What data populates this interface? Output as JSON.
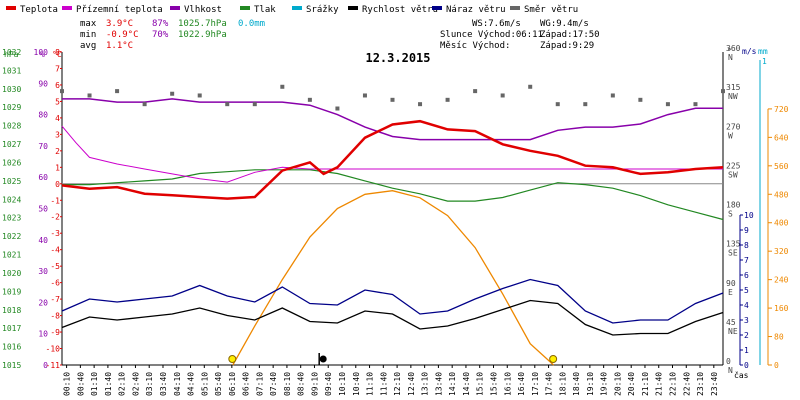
{
  "title": "12.3.2015",
  "legend": [
    {
      "label": "Teplota",
      "color": "#e00000"
    },
    {
      "label": "Přízemní teplota",
      "color": "#cc00cc"
    },
    {
      "label": "Vlhkost",
      "color": "#8800aa"
    },
    {
      "label": "Tlak",
      "color": "#228822"
    },
    {
      "label": "Srážky",
      "color": "#00aacc"
    },
    {
      "label": "Rychlost větru",
      "color": "#000000"
    },
    {
      "label": "Náraz větru",
      "color": "#000088"
    },
    {
      "label": "Směr větru",
      "color": "#666666"
    }
  ],
  "stats": {
    "rows": [
      {
        "label": "max",
        "temp": "3.9°C",
        "hum": "87%",
        "press": "1025.7hPa",
        "rain": "0.0mm"
      },
      {
        "label": "min",
        "temp": "-0.9°C",
        "hum": "70%",
        "press": "1022.9hPa",
        "rain": ""
      },
      {
        "label": "avg",
        "temp": "1.1°C",
        "hum": "",
        "press": "",
        "rain": ""
      }
    ],
    "ws": "WS:7.6m/s",
    "wg": "WG:9.4m/s",
    "slunce": "Slunce Východ:06:11",
    "slunce_zapad": "Západ:17:50",
    "mesic": "Měsíc  Východ:",
    "mesic_zapad": "Západ:9:29"
  },
  "axes": {
    "hpa_unit": "hPa",
    "hpa_ticks": [
      "1032",
      "1031",
      "1030",
      "1029",
      "1028",
      "1027",
      "1026",
      "1025",
      "1024",
      "1023",
      "1022",
      "1021",
      "1020",
      "1019",
      "1018",
      "1017",
      "1016",
      "1015"
    ],
    "pct_unit": "%",
    "pct_ticks": [
      "100",
      "90",
      "80",
      "70",
      "60",
      "50",
      "40",
      "30",
      "20",
      "10",
      "0"
    ],
    "c_unit": "°C",
    "c_ticks": [
      "8",
      "7",
      "6",
      "5",
      "4",
      "3",
      "2",
      "1",
      "0",
      "-1",
      "-2",
      "-3",
      "-4",
      "-5",
      "-6",
      "-7",
      "-8",
      "-9",
      "-10",
      "-11"
    ],
    "deg_unit": "°",
    "dir_ticks": [
      {
        "deg": "360",
        "dir": "N"
      },
      {
        "deg": "315",
        "dir": "NW"
      },
      {
        "deg": "270",
        "dir": "W"
      },
      {
        "deg": "225",
        "dir": "SW"
      },
      {
        "deg": "180",
        "dir": "S"
      },
      {
        "deg": "135",
        "dir": "SE"
      },
      {
        "deg": "90",
        "dir": "E"
      },
      {
        "deg": "45",
        "dir": "NE"
      },
      {
        "deg": "0",
        "dir": "N"
      }
    ],
    "ms_unit": "m/s",
    "ms_ticks": [
      "10",
      "9",
      "8",
      "7",
      "6",
      "5",
      "4",
      "3",
      "2",
      "1",
      "0"
    ],
    "mm_unit": "mm",
    "mm_top": "1",
    "wm_ticks": [
      "720",
      "640",
      "560",
      "480",
      "400",
      "320",
      "240",
      "160",
      "80",
      "0"
    ],
    "time_unit": "čas",
    "time_ticks": [
      "00:10",
      "00:40",
      "01:10",
      "01:40",
      "02:10",
      "02:40",
      "03:10",
      "03:40",
      "04:10",
      "04:40",
      "05:10",
      "05:40",
      "06:10",
      "06:40",
      "07:10",
      "07:40",
      "08:10",
      "08:40",
      "09:10",
      "09:40",
      "10:10",
      "10:40",
      "11:10",
      "11:40",
      "12:10",
      "12:40",
      "13:10",
      "13:40",
      "14:10",
      "14:40",
      "15:10",
      "15:40",
      "16:10",
      "16:40",
      "17:10",
      "17:40",
      "18:10",
      "18:40",
      "19:10",
      "19:40",
      "20:10",
      "20:40",
      "21:10",
      "21:40",
      "22:10",
      "22:40",
      "23:10",
      "23:40"
    ]
  },
  "chart_data": {
    "type": "line",
    "date": "12.3.2015",
    "x_unit": "hour of day",
    "x_range": [
      0,
      24
    ],
    "series": [
      {
        "name": "Teplota",
        "unit": "°C",
        "color": "#e00000",
        "x": [
          0,
          1,
          2,
          3,
          4,
          5,
          6,
          7,
          8,
          9,
          9.5,
          10,
          11,
          12,
          13,
          14,
          15,
          16,
          17,
          18,
          19,
          20,
          21,
          22,
          23,
          24
        ],
        "y": [
          -0.1,
          -0.3,
          -0.2,
          -0.6,
          -0.7,
          -0.8,
          -0.9,
          -0.8,
          0.8,
          1.3,
          0.6,
          1.0,
          2.8,
          3.6,
          3.8,
          3.3,
          3.2,
          2.4,
          2.0,
          1.7,
          1.1,
          1.0,
          0.6,
          0.7,
          0.9,
          1.0
        ]
      },
      {
        "name": "Přízemní teplota",
        "unit": "°C",
        "color": "#cc00cc",
        "x": [
          0,
          0.5,
          1,
          2,
          3,
          4,
          5,
          6,
          7,
          8,
          9,
          10,
          12,
          14,
          16,
          18,
          20,
          22,
          24
        ],
        "y": [
          3.5,
          2.5,
          1.6,
          1.2,
          0.9,
          0.6,
          0.3,
          0.1,
          0.7,
          1.0,
          0.9,
          0.9,
          0.9,
          0.9,
          0.9,
          0.9,
          0.9,
          0.9,
          0.9
        ]
      },
      {
        "name": "Vlhkost",
        "unit": "%",
        "color": "#8800aa",
        "x": [
          0,
          1,
          2,
          3,
          4,
          5,
          6,
          7,
          8,
          9,
          10,
          11,
          12,
          13,
          14,
          15,
          16,
          17,
          18,
          19,
          20,
          21,
          22,
          23,
          24
        ],
        "y": [
          85,
          85,
          84,
          84,
          85,
          84,
          84,
          84,
          84,
          83,
          80,
          76,
          73,
          72,
          72,
          72,
          72,
          72,
          75,
          76,
          76,
          77,
          80,
          82,
          82
        ]
      },
      {
        "name": "Tlak",
        "unit": "hPa",
        "color": "#228822",
        "x": [
          0,
          1,
          2,
          3,
          4,
          5,
          6,
          7,
          8,
          9,
          10,
          11,
          12,
          13,
          14,
          15,
          16,
          17,
          18,
          19,
          20,
          21,
          22,
          23,
          24
        ],
        "y": [
          1024.8,
          1024.8,
          1024.9,
          1025.0,
          1025.1,
          1025.4,
          1025.5,
          1025.6,
          1025.6,
          1025.6,
          1025.4,
          1025.0,
          1024.6,
          1024.3,
          1023.9,
          1023.9,
          1024.1,
          1024.5,
          1024.9,
          1024.8,
          1024.6,
          1024.2,
          1023.7,
          1023.3,
          1022.9
        ]
      },
      {
        "name": "Rychlost větru",
        "unit": "m/s",
        "color": "#000000",
        "x": [
          0,
          1,
          2,
          3,
          4,
          5,
          6,
          7,
          8,
          9,
          10,
          11,
          12,
          13,
          14,
          15,
          16,
          17,
          18,
          19,
          20,
          21,
          22,
          23,
          24
        ],
        "y": [
          2.5,
          3.2,
          3.0,
          3.2,
          3.4,
          3.8,
          3.3,
          3.0,
          3.8,
          2.9,
          2.8,
          3.6,
          3.4,
          2.4,
          2.6,
          3.1,
          3.7,
          4.3,
          4.1,
          2.7,
          2.0,
          2.1,
          2.1,
          2.9,
          3.5
        ]
      },
      {
        "name": "Náraz větru",
        "unit": "m/s",
        "color": "#000088",
        "x": [
          0,
          1,
          2,
          3,
          4,
          5,
          6,
          7,
          8,
          9,
          10,
          11,
          12,
          13,
          14,
          15,
          16,
          17,
          18,
          19,
          20,
          21,
          22,
          23,
          24
        ],
        "y": [
          3.6,
          4.4,
          4.2,
          4.4,
          4.6,
          5.3,
          4.6,
          4.2,
          5.2,
          4.1,
          4.0,
          5.0,
          4.7,
          3.4,
          3.6,
          4.4,
          5.1,
          5.7,
          5.3,
          3.6,
          2.8,
          3.0,
          3.0,
          4.1,
          4.8
        ]
      },
      {
        "name": "Směr větru",
        "unit": "°",
        "color": "#666666",
        "x": [
          0,
          1,
          2,
          3,
          4,
          5,
          6,
          7,
          8,
          9,
          10,
          11,
          12,
          13,
          14,
          15,
          16,
          17,
          18,
          19,
          20,
          21,
          22,
          23,
          24
        ],
        "y": [
          315,
          310,
          315,
          300,
          312,
          310,
          300,
          300,
          320,
          305,
          295,
          310,
          305,
          300,
          305,
          315,
          310,
          320,
          300,
          300,
          310,
          305,
          300,
          300,
          315
        ]
      },
      {
        "name": "Solar",
        "unit": "W/m²",
        "color": "#ee8800",
        "x": [
          6.2,
          7,
          8,
          9,
          10,
          11,
          12,
          13,
          14,
          15,
          16,
          17,
          17.85
        ],
        "y": [
          0,
          110,
          240,
          360,
          440,
          480,
          490,
          470,
          420,
          330,
          200,
          60,
          0
        ]
      }
    ],
    "sunrise": "06:11",
    "sunset": "17:50",
    "moonset": "9:29",
    "axis_ranges": {
      "temp_c": [
        -11,
        8
      ],
      "humidity_pct": [
        0,
        100
      ],
      "pressure_hpa": [
        1015,
        1032
      ],
      "direction_deg": [
        0,
        360
      ],
      "wind_ms": [
        0,
        10
      ],
      "solar_wm2": [
        0,
        720
      ]
    },
    "grid": false
  }
}
